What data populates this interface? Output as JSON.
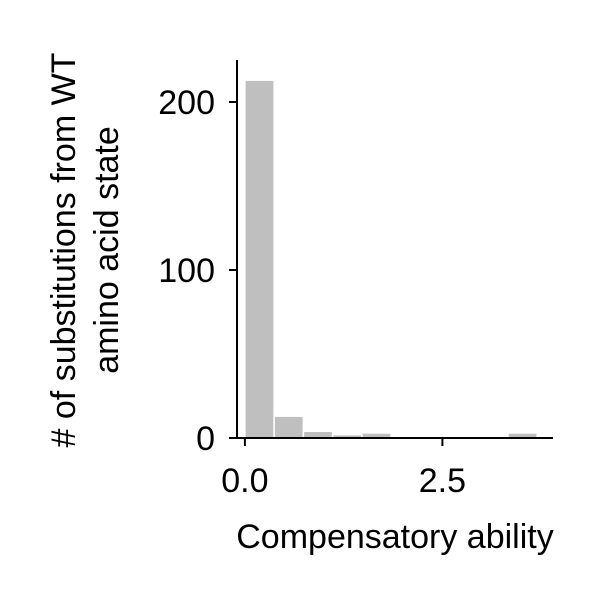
{
  "chart_data": {
    "type": "bar",
    "subtype": "histogram",
    "xlabel": "Compensatory ability",
    "ylabel": [
      "# of substitutions from WT",
      "amino acid state"
    ],
    "xlim": [
      -0.1,
      3.9
    ],
    "ylim": [
      0,
      225
    ],
    "xticks": [
      0.0,
      2.5
    ],
    "xtick_labels": [
      "0.0",
      "2.5"
    ],
    "yticks": [
      0,
      100,
      200
    ],
    "ytick_labels": [
      "0",
      "100",
      "200"
    ],
    "bar_color": "#bfbfbf",
    "grid": false,
    "bins": [
      {
        "x0": 0.0,
        "x1": 0.37,
        "count": 213
      },
      {
        "x0": 0.37,
        "x1": 0.74,
        "count": 13
      },
      {
        "x0": 0.74,
        "x1": 1.11,
        "count": 4
      },
      {
        "x0": 1.11,
        "x1": 1.48,
        "count": 2
      },
      {
        "x0": 1.48,
        "x1": 1.85,
        "count": 3
      },
      {
        "x0": 1.85,
        "x1": 2.22,
        "count": 0
      },
      {
        "x0": 2.22,
        "x1": 2.59,
        "count": 0
      },
      {
        "x0": 2.59,
        "x1": 2.96,
        "count": 0
      },
      {
        "x0": 2.96,
        "x1": 3.33,
        "count": 1
      },
      {
        "x0": 3.33,
        "x1": 3.7,
        "count": 3
      }
    ]
  }
}
